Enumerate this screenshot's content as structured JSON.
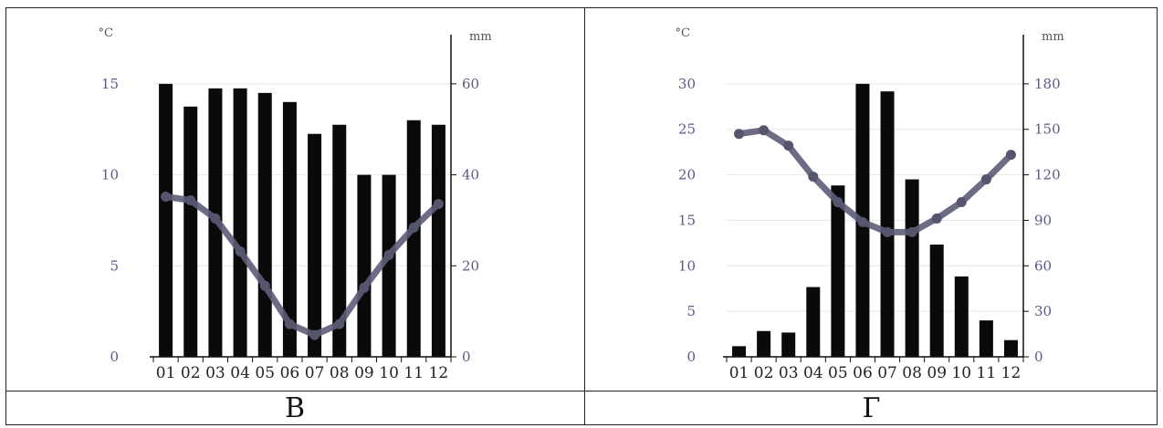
{
  "chart_data": [
    {
      "type": "bar",
      "caption": "В",
      "categories": [
        "01",
        "02",
        "03",
        "04",
        "05",
        "06",
        "07",
        "08",
        "09",
        "10",
        "11",
        "12"
      ],
      "left_axis": {
        "unit": "°C",
        "ticks": [
          0,
          5,
          10,
          15
        ],
        "range": [
          0,
          17.5
        ]
      },
      "right_axis": {
        "unit": "mm",
        "ticks": [
          0,
          20,
          40,
          60
        ],
        "range": [
          0,
          70
        ]
      },
      "series": [
        {
          "kind": "bar",
          "axis": "right",
          "values": [
            60,
            55,
            59,
            59,
            58,
            56,
            49,
            51,
            40,
            40,
            52,
            51
          ]
        },
        {
          "kind": "line",
          "axis": "left",
          "values": [
            8.8,
            8.6,
            7.6,
            5.8,
            3.9,
            1.8,
            1.2,
            1.8,
            3.8,
            5.6,
            7.1,
            8.4
          ]
        }
      ]
    },
    {
      "type": "bar",
      "caption": "Г",
      "categories": [
        "01",
        "02",
        "03",
        "04",
        "05",
        "06",
        "07",
        "08",
        "09",
        "10",
        "11",
        "12"
      ],
      "left_axis": {
        "unit": "°C",
        "ticks": [
          0,
          5,
          10,
          15,
          20,
          25,
          30
        ],
        "range": [
          0,
          35
        ]
      },
      "right_axis": {
        "unit": "mm",
        "ticks": [
          0,
          30,
          60,
          90,
          120,
          150,
          180
        ],
        "range": [
          0,
          210
        ]
      },
      "series": [
        {
          "kind": "bar",
          "axis": "right",
          "values": [
            7,
            17,
            16,
            46,
            113,
            180,
            175,
            117,
            74,
            53,
            24,
            11
          ]
        },
        {
          "kind": "line",
          "axis": "left",
          "values": [
            24.5,
            24.9,
            23.2,
            19.8,
            17.0,
            14.8,
            13.7,
            13.7,
            15.2,
            17.0,
            19.5,
            22.2
          ]
        }
      ]
    }
  ]
}
